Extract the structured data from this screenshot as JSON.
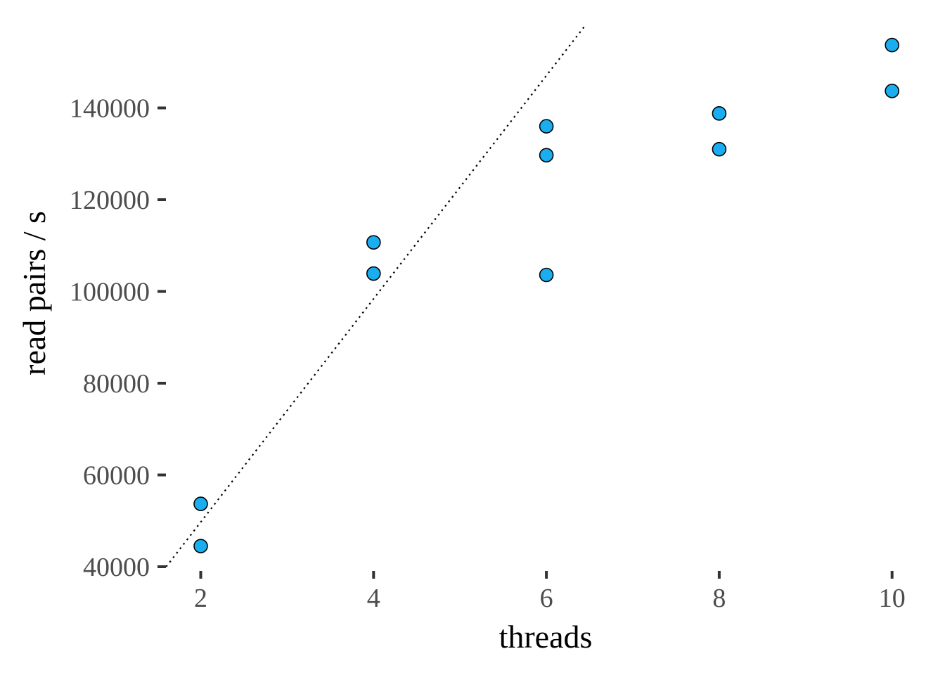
{
  "chart_data": {
    "type": "scatter",
    "title": "",
    "xlabel": "threads",
    "ylabel": "read pairs / s",
    "xlim": [
      1.8,
      10.2
    ],
    "ylim": [
      40000,
      156000
    ],
    "xticks": [
      2,
      4,
      6,
      8,
      10
    ],
    "xtick_labels": [
      "2",
      "4",
      "6",
      "8",
      "10"
    ],
    "yticks": [
      40000,
      60000,
      80000,
      100000,
      120000,
      140000
    ],
    "ytick_labels": [
      "40000",
      "60000",
      "80000",
      "100000",
      "120000",
      "140000"
    ],
    "grid": false,
    "points": [
      {
        "x": 2,
        "y": 44500
      },
      {
        "x": 2,
        "y": 53700
      },
      {
        "x": 4,
        "y": 103900
      },
      {
        "x": 4,
        "y": 110700
      },
      {
        "x": 6,
        "y": 103600
      },
      {
        "x": 6,
        "y": 129700
      },
      {
        "x": 6,
        "y": 136000
      },
      {
        "x": 8,
        "y": 131000
      },
      {
        "x": 8,
        "y": 138800
      },
      {
        "x": 10,
        "y": 143700
      },
      {
        "x": 10,
        "y": 153700
      }
    ],
    "reference_line": {
      "style": "dotted",
      "x": [
        1.6,
        6.45
      ],
      "y": [
        40000,
        158000
      ]
    },
    "colors": {
      "point_fill": "#1aaef0",
      "point_stroke": "#000000",
      "tick_label": "#4d4d4d",
      "axis_title": "#000000",
      "reference_line": "#000000"
    }
  }
}
